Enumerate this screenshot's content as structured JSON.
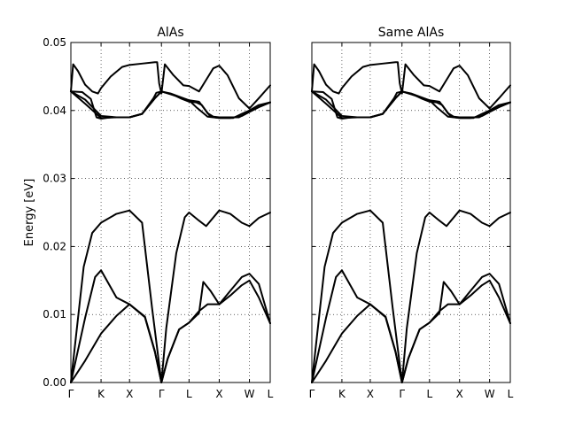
{
  "figure": {
    "shared_ylabel": "Energy [eV]"
  },
  "chart_data": [
    {
      "type": "line",
      "title": "AlAs",
      "ylabel": "Energy [eV]",
      "ylim": [
        0.0,
        0.05
      ],
      "y_ticks": [
        "0.00",
        "0.01",
        "0.02",
        "0.03",
        "0.04",
        "0.05"
      ],
      "y_tick_values": [
        0.0,
        0.01,
        0.02,
        0.03,
        0.04,
        0.05
      ],
      "x_tick_labels": [
        "Γ",
        "K",
        "X",
        "Γ",
        "L",
        "X",
        "W",
        "L"
      ],
      "x_tick_positions": [
        0.0,
        1.06,
        2.06,
        3.18,
        4.15,
        5.21,
        6.27,
        7.0
      ],
      "xlim": [
        0.0,
        7.0
      ],
      "grid": "dotted",
      "line_color": "#000000",
      "series": [
        {
          "x": [
            0.0,
            0.5,
            1.06,
            1.6,
            2.06,
            2.6,
            2.95,
            3.18,
            3.4,
            3.8,
            4.15,
            4.5,
            4.8,
            5.21,
            5.6,
            6.0,
            6.27,
            6.6,
            7.0
          ],
          "y": [
            0.0,
            0.0032,
            0.0072,
            0.0098,
            0.0115,
            0.0096,
            0.0045,
            0.0,
            0.0035,
            0.0078,
            0.0088,
            0.0105,
            0.0115,
            0.0115,
            0.0128,
            0.0143,
            0.015,
            0.0125,
            0.0087
          ]
        },
        {
          "x": [
            0.0,
            0.5,
            0.85,
            1.06,
            1.6,
            2.06,
            2.6,
            2.95,
            3.18,
            3.4,
            3.8,
            4.15,
            4.5,
            4.65,
            4.9,
            5.21,
            5.6,
            6.0,
            6.27,
            6.6,
            7.0
          ],
          "y": [
            0.0,
            0.0095,
            0.0155,
            0.0165,
            0.0125,
            0.0115,
            0.0097,
            0.0046,
            0.0,
            0.0035,
            0.0078,
            0.0088,
            0.0102,
            0.0148,
            0.0135,
            0.0115,
            0.0135,
            0.0155,
            0.016,
            0.0145,
            0.0087
          ]
        },
        {
          "x": [
            0.0,
            0.45,
            0.75,
            1.06,
            1.6,
            2.06,
            2.5,
            2.85,
            3.18,
            3.35,
            3.7,
            4.0,
            4.15,
            4.5,
            4.75,
            5.21,
            5.6,
            6.0,
            6.27,
            6.6,
            7.0
          ],
          "y": [
            0.0,
            0.017,
            0.022,
            0.0235,
            0.0248,
            0.0253,
            0.0235,
            0.011,
            0.0,
            0.008,
            0.019,
            0.0243,
            0.025,
            0.0238,
            0.023,
            0.0253,
            0.0248,
            0.0235,
            0.023,
            0.0242,
            0.025
          ]
        },
        {
          "x": [
            0.0,
            0.5,
            1.06,
            1.6,
            2.06,
            2.5,
            2.95,
            3.18,
            3.5,
            4.15,
            4.4,
            4.8,
            5.21,
            5.6,
            6.0,
            6.27,
            6.6,
            7.0
          ],
          "y": [
            0.0428,
            0.041,
            0.0389,
            0.039,
            0.039,
            0.0395,
            0.0418,
            0.0428,
            0.0424,
            0.0415,
            0.0405,
            0.0391,
            0.0389,
            0.0389,
            0.0392,
            0.0398,
            0.0405,
            0.0412
          ]
        },
        {
          "x": [
            0.0,
            0.5,
            1.06,
            1.6,
            2.06,
            2.5,
            2.95,
            3.18,
            3.5,
            4.15,
            4.5,
            4.9,
            5.21,
            5.7,
            6.0,
            6.27,
            6.6,
            7.0
          ],
          "y": [
            0.0428,
            0.0416,
            0.0392,
            0.039,
            0.039,
            0.0395,
            0.0418,
            0.0428,
            0.0425,
            0.0415,
            0.0413,
            0.0391,
            0.0389,
            0.0389,
            0.0395,
            0.04,
            0.0408,
            0.0412
          ]
        },
        {
          "x": [
            0.0,
            0.4,
            0.7,
            0.9,
            1.06,
            1.4,
            1.8,
            2.06,
            2.5,
            2.9,
            3.0,
            3.18,
            3.35,
            3.6,
            3.9,
            4.15,
            4.4,
            4.6,
            4.8,
            5.0,
            5.21,
            5.5,
            5.9,
            6.27,
            6.6,
            7.0
          ],
          "y": [
            0.0428,
            0.0427,
            0.0417,
            0.039,
            0.0388,
            0.039,
            0.039,
            0.039,
            0.0395,
            0.0418,
            0.0426,
            0.0428,
            0.0426,
            0.0423,
            0.0417,
            0.0413,
            0.0412,
            0.0408,
            0.0396,
            0.0391,
            0.039,
            0.039,
            0.039,
            0.0398,
            0.0405,
            0.0412
          ]
        },
        {
          "x": [
            0.0,
            0.08,
            0.25,
            0.5,
            0.75,
            0.95,
            1.06,
            1.4,
            1.8,
            2.06,
            2.5,
            2.95,
            3.03,
            3.1,
            3.18,
            3.3,
            3.6,
            3.95,
            4.15,
            4.5,
            4.75,
            5.0,
            5.21,
            5.5,
            5.9,
            6.27,
            6.6,
            7.0
          ],
          "y": [
            0.0428,
            0.0468,
            0.0458,
            0.0438,
            0.0428,
            0.0425,
            0.0433,
            0.045,
            0.0464,
            0.0467,
            0.0469,
            0.0471,
            0.0471,
            0.044,
            0.0425,
            0.0468,
            0.0452,
            0.0437,
            0.0436,
            0.0428,
            0.0445,
            0.0462,
            0.0466,
            0.0452,
            0.0418,
            0.0403,
            0.0418,
            0.0437
          ]
        }
      ]
    },
    {
      "type": "line",
      "title": "Same AlAs",
      "ylim": [
        0.0,
        0.05
      ],
      "x_tick_labels": [
        "Γ",
        "K",
        "X",
        "Γ",
        "L",
        "X",
        "W",
        "L"
      ],
      "x_tick_positions": [
        0.0,
        1.06,
        2.06,
        3.18,
        4.15,
        5.21,
        6.27,
        7.0
      ],
      "xlim": [
        0.0,
        7.0
      ],
      "grid": "dotted",
      "line_color": "#000000",
      "series": [
        {
          "x": [
            0.0,
            0.5,
            1.06,
            1.6,
            2.06,
            2.6,
            2.95,
            3.18,
            3.4,
            3.8,
            4.15,
            4.5,
            4.8,
            5.21,
            5.6,
            6.0,
            6.27,
            6.6,
            7.0
          ],
          "y": [
            0.0,
            0.0032,
            0.0072,
            0.0098,
            0.0115,
            0.0096,
            0.0045,
            0.0,
            0.0035,
            0.0078,
            0.0088,
            0.0105,
            0.0115,
            0.0115,
            0.0128,
            0.0143,
            0.015,
            0.0125,
            0.0087
          ]
        },
        {
          "x": [
            0.0,
            0.5,
            0.85,
            1.06,
            1.6,
            2.06,
            2.6,
            2.95,
            3.18,
            3.4,
            3.8,
            4.15,
            4.5,
            4.65,
            4.9,
            5.21,
            5.6,
            6.0,
            6.27,
            6.6,
            7.0
          ],
          "y": [
            0.0,
            0.0095,
            0.0155,
            0.0165,
            0.0125,
            0.0115,
            0.0097,
            0.0046,
            0.0,
            0.0035,
            0.0078,
            0.0088,
            0.0102,
            0.0148,
            0.0135,
            0.0115,
            0.0135,
            0.0155,
            0.016,
            0.0145,
            0.0087
          ]
        },
        {
          "x": [
            0.0,
            0.45,
            0.75,
            1.06,
            1.6,
            2.06,
            2.5,
            2.85,
            3.18,
            3.35,
            3.7,
            4.0,
            4.15,
            4.5,
            4.75,
            5.21,
            5.6,
            6.0,
            6.27,
            6.6,
            7.0
          ],
          "y": [
            0.0,
            0.017,
            0.022,
            0.0235,
            0.0248,
            0.0253,
            0.0235,
            0.011,
            0.0,
            0.008,
            0.019,
            0.0243,
            0.025,
            0.0238,
            0.023,
            0.0253,
            0.0248,
            0.0235,
            0.023,
            0.0242,
            0.025
          ]
        },
        {
          "x": [
            0.0,
            0.5,
            1.06,
            1.6,
            2.06,
            2.5,
            2.95,
            3.18,
            3.5,
            4.15,
            4.4,
            4.8,
            5.21,
            5.6,
            6.0,
            6.27,
            6.6,
            7.0
          ],
          "y": [
            0.0428,
            0.041,
            0.0389,
            0.039,
            0.039,
            0.0395,
            0.0418,
            0.0428,
            0.0424,
            0.0415,
            0.0405,
            0.0391,
            0.0389,
            0.0389,
            0.0392,
            0.0398,
            0.0405,
            0.0412
          ]
        },
        {
          "x": [
            0.0,
            0.5,
            1.06,
            1.6,
            2.06,
            2.5,
            2.95,
            3.18,
            3.5,
            4.15,
            4.5,
            4.9,
            5.21,
            5.7,
            6.0,
            6.27,
            6.6,
            7.0
          ],
          "y": [
            0.0428,
            0.0416,
            0.0392,
            0.039,
            0.039,
            0.0395,
            0.0418,
            0.0428,
            0.0425,
            0.0415,
            0.0413,
            0.0391,
            0.0389,
            0.0389,
            0.0395,
            0.04,
            0.0408,
            0.0412
          ]
        },
        {
          "x": [
            0.0,
            0.4,
            0.7,
            0.9,
            1.06,
            1.4,
            1.8,
            2.06,
            2.5,
            2.9,
            3.0,
            3.18,
            3.35,
            3.6,
            3.9,
            4.15,
            4.4,
            4.6,
            4.8,
            5.0,
            5.21,
            5.5,
            5.9,
            6.27,
            6.6,
            7.0
          ],
          "y": [
            0.0428,
            0.0427,
            0.0417,
            0.039,
            0.0388,
            0.039,
            0.039,
            0.039,
            0.0395,
            0.0418,
            0.0426,
            0.0428,
            0.0426,
            0.0423,
            0.0417,
            0.0413,
            0.0412,
            0.0408,
            0.0396,
            0.0391,
            0.039,
            0.039,
            0.039,
            0.0398,
            0.0405,
            0.0412
          ]
        },
        {
          "x": [
            0.0,
            0.08,
            0.25,
            0.5,
            0.75,
            0.95,
            1.06,
            1.4,
            1.8,
            2.06,
            2.5,
            2.95,
            3.03,
            3.1,
            3.18,
            3.3,
            3.6,
            3.95,
            4.15,
            4.5,
            4.75,
            5.0,
            5.21,
            5.5,
            5.9,
            6.27,
            6.6,
            7.0
          ],
          "y": [
            0.0428,
            0.0468,
            0.0458,
            0.0438,
            0.0428,
            0.0425,
            0.0433,
            0.045,
            0.0464,
            0.0467,
            0.0469,
            0.0471,
            0.0471,
            0.044,
            0.0425,
            0.0468,
            0.0452,
            0.0437,
            0.0436,
            0.0428,
            0.0445,
            0.0462,
            0.0466,
            0.0452,
            0.0418,
            0.0403,
            0.0418,
            0.0437
          ]
        }
      ]
    }
  ]
}
